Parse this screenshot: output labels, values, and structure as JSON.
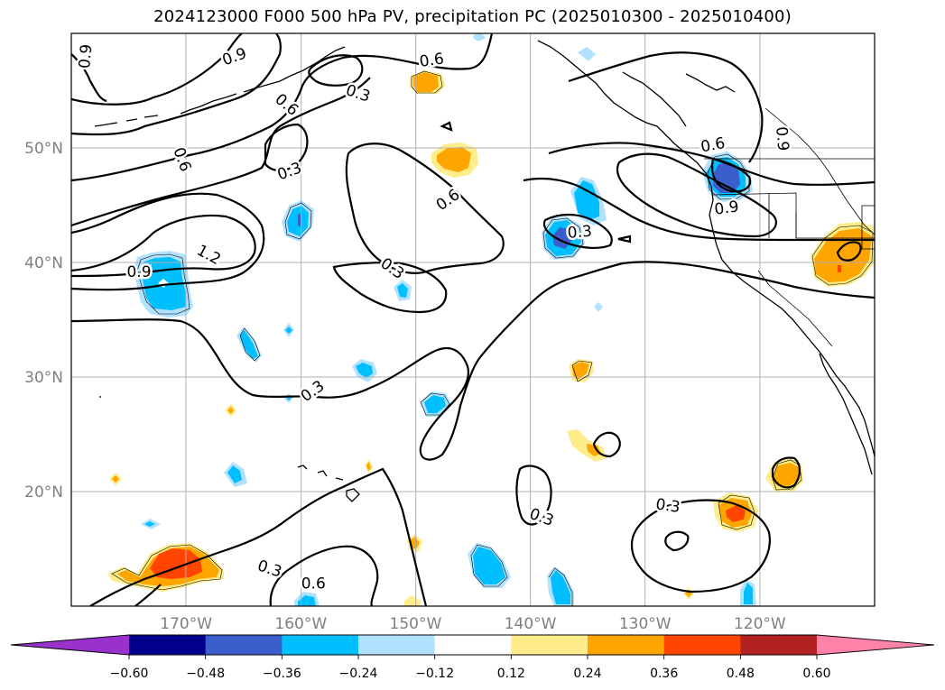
{
  "title": "2024123000 F000 500 hPa PV, precipitation PC (2025010300 - 2025010400)",
  "map": {
    "projection": "PlateCarree",
    "extent": {
      "lon": [
        -180,
        -110
      ],
      "lat": [
        10,
        60
      ]
    },
    "lon_ticks": [
      {
        "value": -170,
        "label": "170°W"
      },
      {
        "value": -160,
        "label": "160°W"
      },
      {
        "value": -150,
        "label": "150°W"
      },
      {
        "value": -140,
        "label": "140°W"
      },
      {
        "value": -130,
        "label": "130°W"
      },
      {
        "value": -120,
        "label": "120°W"
      }
    ],
    "lat_ticks": [
      {
        "value": 50,
        "label": "50°N"
      },
      {
        "value": 40,
        "label": "40°N"
      },
      {
        "value": 30,
        "label": "30°N"
      },
      {
        "value": 20,
        "label": "20°N"
      }
    ],
    "gridlines": true,
    "contour_labels": [
      {
        "text": "0.9",
        "lon": -178.8,
        "lat": 58.0,
        "rot": 85
      },
      {
        "text": "0.9",
        "lon": -165.8,
        "lat": 58.0,
        "rot": 20
      },
      {
        "text": "0.6",
        "lon": -148.6,
        "lat": 57.7,
        "rot": 8
      },
      {
        "text": "0.3",
        "lon": -155.0,
        "lat": 54.8,
        "rot": -18
      },
      {
        "text": "0.6",
        "lon": -161.2,
        "lat": 53.8,
        "rot": -40
      },
      {
        "text": "0.6",
        "lon": -170.3,
        "lat": 49.0,
        "rot": -70
      },
      {
        "text": "0.3",
        "lon": -161.0,
        "lat": 48.0,
        "rot": 20
      },
      {
        "text": "0.6",
        "lon": -147.2,
        "lat": 45.5,
        "rot": 35
      },
      {
        "text": "0.6",
        "lon": -124.1,
        "lat": 50.3,
        "rot": 10
      },
      {
        "text": "0.9",
        "lon": -118.0,
        "lat": 50.8,
        "rot": -85
      },
      {
        "text": "0.9",
        "lon": -122.9,
        "lat": 44.8,
        "rot": 8
      },
      {
        "text": "0.3",
        "lon": -135.7,
        "lat": 42.7,
        "rot": 5
      },
      {
        "text": "1.2",
        "lon": -168.0,
        "lat": 40.7,
        "rot": -28
      },
      {
        "text": "0.9",
        "lon": -174.1,
        "lat": 39.2,
        "rot": 0
      },
      {
        "text": "0.3",
        "lon": -152.0,
        "lat": 39.5,
        "rot": -35
      },
      {
        "text": "0.3",
        "lon": -159.0,
        "lat": 28.8,
        "rot": 35
      },
      {
        "text": "0.3",
        "lon": -139.0,
        "lat": 17.8,
        "rot": -20
      },
      {
        "text": "0.3",
        "lon": -128.0,
        "lat": 18.8,
        "rot": -8
      },
      {
        "text": "0.3",
        "lon": -162.7,
        "lat": 13.3,
        "rot": -18
      },
      {
        "text": "0.6",
        "lon": -158.9,
        "lat": 12.0,
        "rot": 0
      }
    ]
  },
  "colorbar": {
    "levels": [
      -0.72,
      -0.6,
      -0.48,
      -0.36,
      -0.24,
      -0.12,
      0.12,
      0.24,
      0.36,
      0.48,
      0.6,
      0.72
    ],
    "colors": [
      "#9932cc",
      "#00008b",
      "#3a5fcd",
      "#00bfff",
      "#b0e2ff",
      "#ffffff",
      "#ffec8b",
      "#ffa500",
      "#ff4500",
      "#b22222",
      "#ff83a8"
    ],
    "labels": [
      "−0.60",
      "−0.48",
      "−0.36",
      "−0.24",
      "−0.12",
      "0.12",
      "0.24",
      "0.36",
      "0.48",
      "0.60"
    ],
    "extend": "both"
  }
}
